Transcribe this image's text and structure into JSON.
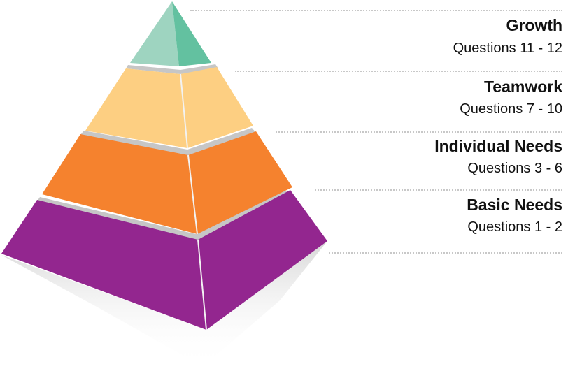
{
  "levels": [
    {
      "title": "Growth",
      "subtitle": "Questions 11 - 12",
      "colors": {
        "left": "#9ed4c0",
        "right": "#63c1a0"
      }
    },
    {
      "title": "Teamwork",
      "subtitle": "Questions 7 - 10",
      "colors": {
        "left": "#fdcf82",
        "right": "#fdcf82"
      }
    },
    {
      "title": "Individual Needs",
      "subtitle": "Questions 3 - 6",
      "colors": {
        "left": "#f5822e",
        "right": "#f5822e"
      }
    },
    {
      "title": "Basic Needs",
      "subtitle": "Questions 1 - 2",
      "colors": {
        "left": "#93268f",
        "right": "#93268f"
      }
    }
  ],
  "divider_color": "#c6c6c6",
  "edge_color": "#f2f2f2"
}
